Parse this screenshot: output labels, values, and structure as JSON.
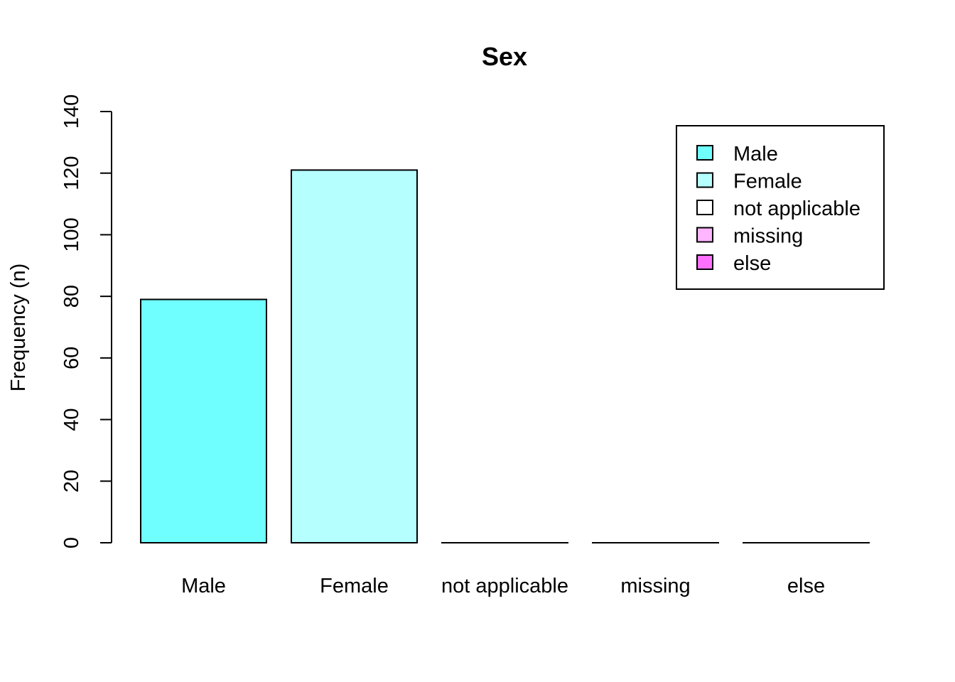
{
  "chart_data": {
    "type": "bar",
    "title": "Sex",
    "xlabel": "",
    "ylabel": "Frequency (n)",
    "categories": [
      "Male",
      "Female",
      "not applicable",
      "missing",
      "else"
    ],
    "values": [
      79,
      121,
      0,
      0,
      0
    ],
    "colors": [
      "#70FFFF",
      "#B5FFFF",
      "#FFFFFF",
      "#FFB5FF",
      "#FF70FF"
    ],
    "ylim": [
      0,
      140
    ],
    "yticks": [
      "0",
      "20",
      "40",
      "60",
      "80",
      "100",
      "120",
      "140"
    ],
    "grid": false,
    "legend": {
      "position": "top-right",
      "entries": [
        "Male",
        "Female",
        "not applicable",
        "missing",
        "else"
      ]
    }
  }
}
